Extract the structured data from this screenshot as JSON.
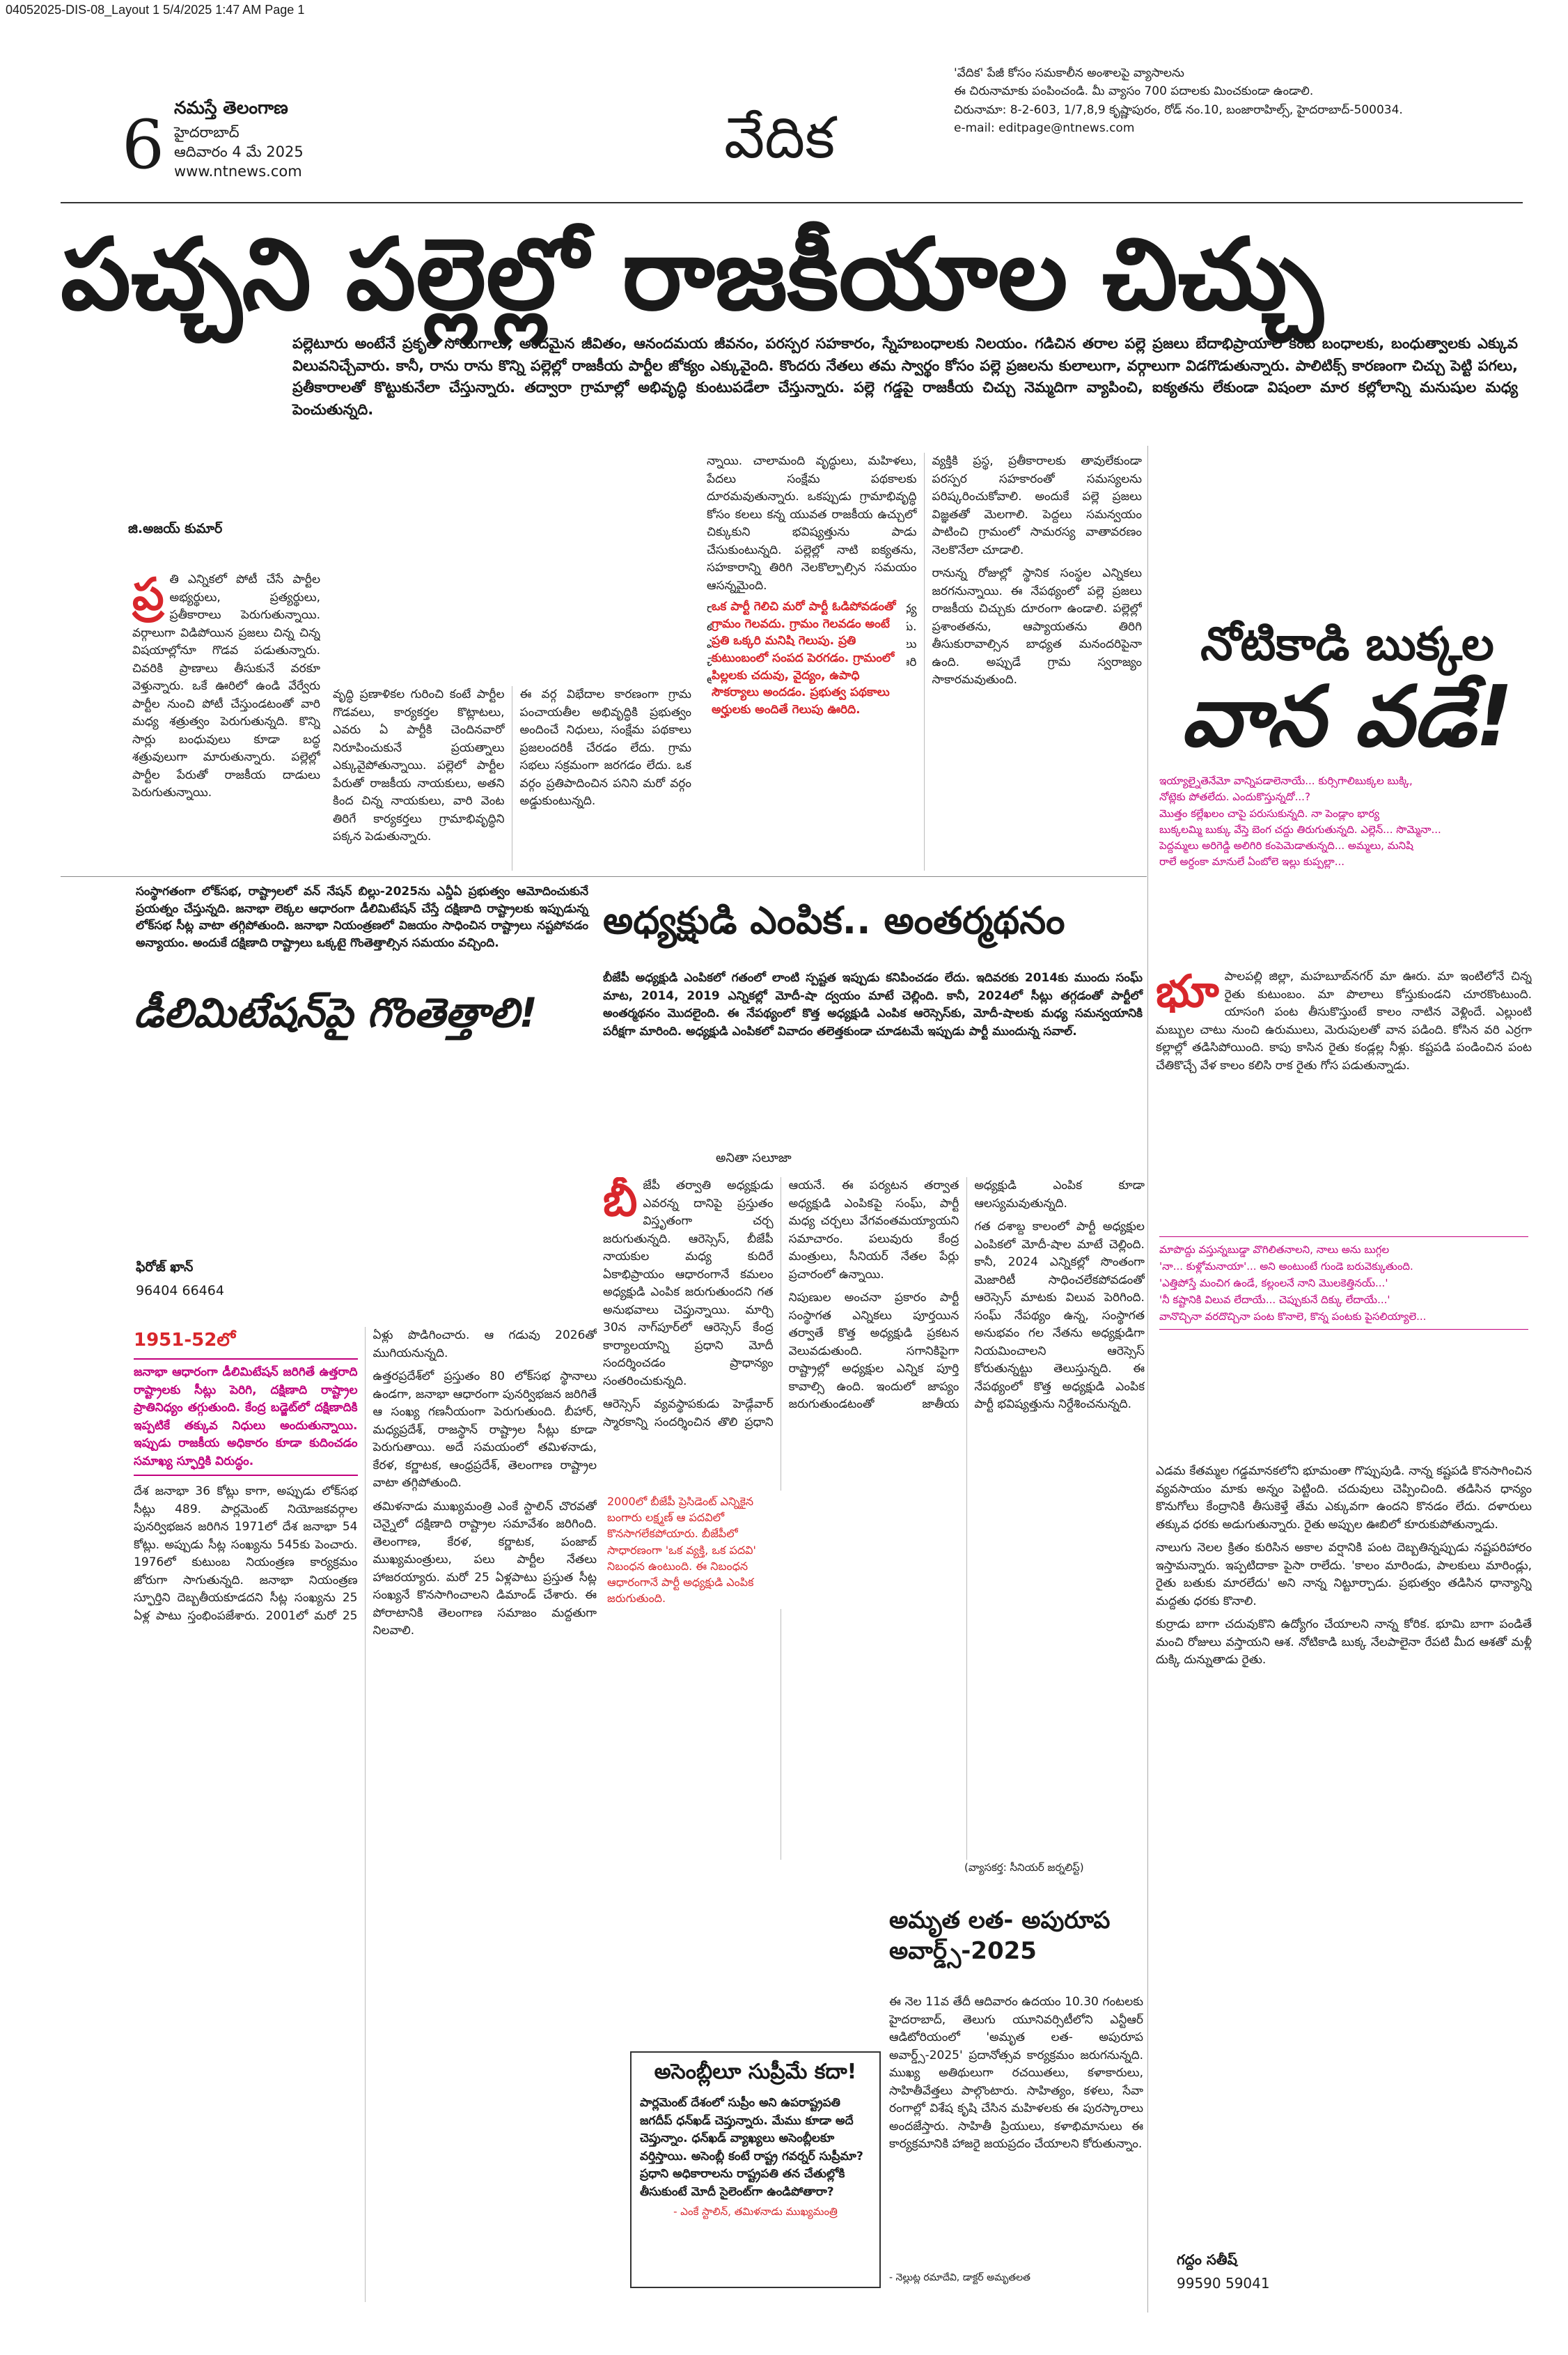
{
  "slug": "04052025-DIS-08_Layout 1  5/4/2025  1:47 AM  Page 1",
  "masthead": {
    "page_number": "6",
    "paper": "నమస్తే తెలంగాణ",
    "city": "హైదరాబాద్",
    "date": "ఆదివారం 4 మే 2025",
    "website": "www.ntnews.com",
    "section": "వేదిక",
    "info": [
      "'వేదిక' పేజీ కోసం సమకాలీన అంశాలపై వ్యాసాలను",
      "ఈ చిరునామాకు పంపించండి. మీ వ్యాసం 700 పదాలకు మించకుండా ఉండాలి.",
      "చిరునామా: 8-2-603, 1/7,8,9 కృష్ణాపురం, రోడ్ నం.10, బంజారాహిల్స్, హైదరాబాద్-500034.",
      "e-mail: editpage@ntnews.com"
    ]
  },
  "lead": {
    "headline": "పచ్చని పల్లెల్లో రాజకీయాల చిచ్చు",
    "deck": "పల్లెటూరు అంటేనే ప్రకృతి సోయగాలు, అందమైన జీవితం, ఆనందమయ జీవనం, పరస్పర సహకారం, స్నేహబంధాలకు నిలయం. గడిచిన తరాల పల్లె ప్రజలు బేదాభిప్రాయాల కంటే బంధాలకు, బంధుత్వాలకు ఎక్కువ విలువనిచ్చేవారు. కానీ, రాను రాను కొన్ని పల్లెల్లో రాజకీయ పార్టీల జోక్యం ఎక్కువైంది. కొందరు నేతలు తమ స్వార్థం కోసం పల్లె ప్రజలను కులాలుగా, వర్గాలుగా విడగొడుతున్నారు. పాలిటిక్స్ కారణంగా చిచ్చు పెట్టి పగలు, ప్రతీకారాలతో కొట్టుకునేలా చేస్తున్నారు. తద్వారా గ్రామాల్లో అభివృద్ధి కుంటుపడేలా చేస్తున్నారు. పల్లె గడ్డపై రాజకీయ చిచ్చు నెమ్మదిగా వ్యాపించి, ఐక్యతను లేకుండా విషంలా మార కల్లోలాన్ని మనుషుల మధ్య పెంచుతున్నది.",
    "byline": "జి.అజయ్ కుమార్",
    "dropcap": "ప్ర",
    "body_a": [
      "తి ఎన్నికలో పోటీ చేసే పార్టీల అభ్యర్థులు, ప్రత్యర్థులు, ప్రతీకారాలు పెరుగుతున్నాయి. వర్గాలుగా విడిపోయిన ప్రజలు చిన్న చిన్న విషయాల్లోనూ గొడవ పడుతున్నారు. చివరికి ప్రాణాలు తీసుకునే వరకూ వెళ్తున్నారు. ఒకే ఊరిలో ఉండి వేర్వేరు పార్టీల నుంచి పోటీ చేస్తుండటంతో వారి మధ్య శత్రుత్వం పెరుగుతున్నది. కొన్ని సార్లు బంధువులు కూడా బద్ధ శత్రువులుగా మారుతున్నారు. పల్లెల్లో పార్టీల పేరుతో రాజకీయ దాడులు పెరుగుతున్నాయి."
    ],
    "body_b": [
      "వృద్ధి ప్రణాళికల గురించి కంటే పార్టీల గొడవలు, కార్యకర్తల కొట్లాటలు, ఎవరు ఏ పార్టీకి చెందినవారో నిరూపించుకునే ప్రయత్నాలు ఎక్కువైపోతున్నాయి. పల్లెలో పార్టీల పేరుతో రాజకీయ నాయకులు, అతని కింద చిన్న నాయకులు, వారి వెంట తిరిగే కార్యకర్తలు గ్రామాభివృద్ధిని పక్కన పెడుతున్నారు.",
      "ఈ వర్గ విభేదాల కారణంగా గ్రామ పంచాయతీల అభివృద్ధికి ప్రభుత్వం అందించే నిధులు, సంక్షేమ పథకాలు ప్రజలందరికీ చేరడం లేదు. గ్రామ సభలు సక్రమంగా జరగడం లేదు. ఒక వర్గం ప్రతిపాదించిన పనిని మరో వర్గం అడ్డుకుంటున్నది."
    ],
    "pullquote": "ఒక పార్టీ గెలిచి మరో పార్టీ ఓడిపోవడంతో గ్రామం గెలవదు. గ్రామం గెలవడం అంటే ప్రతి ఒక్కరి మనిషి గెలుపు. ప్రతి కుటుంబంలో సంపద పెరగడం. గ్రామంలో పిల్లలకు చదువు, వైద్యం, ఉపాధి సౌకర్యాలు అందడం. ప్రభుత్వ పథకాలు అర్హులకు అందితే గెలుపు ఊరిది.",
    "body_c": [
      "న్నాయి. చాలామంది వృద్ధులు, మహిళలు, పేదలు సంక్షేమ పథకాలకు దూరమవుతున్నారు. ఒకప్పుడు గ్రామాభివృద్ధి కోసం కలలు కన్న యువత రాజకీయ ఉచ్చులో చిక్కుకుని భవిష్యత్తును పాడు చేసుకుంటున్నది. పల్లెల్లో నాటి ఐక్యతను, సహకారాన్ని తిరిగి నెలకొల్పాల్సిన సమయం ఆసన్నమైంది.",
      "రాజకీయాలు దేశానికి, రాష్ట్రానికి మధ్య ఉండాలి గానీ పల్లెల నడుమ ఉండకూడదు. ఎన్నికల సమయంలో మాత్రమే రాజకీయాలు చేయాలి. ఆ తర్వాత అందరూ కలిసి ఊరి అభివృద్ధికి కృషి చేయాలి.",
      "వ్యక్తికి ప్రస్థ, ప్రతీకారాలకు తావులేకుండా పరస్పర సహకారంతో సమస్యలను పరిష్కరించుకోవాలి. అందుకే పల్లె ప్రజలు విజ్ఞతతో మెలగాలి. పెద్దలు సమన్వయం పాటించి గ్రామంలో సామరస్య వాతావరణం నెలకొనేలా చూడాలి.",
      "రానున్న రోజుల్లో స్థానిక సంస్థల ఎన్నికలు జరగనున్నాయి. ఈ నేపథ్యంలో పల్లె ప్రజలు రాజకీయ చిచ్చుకు దూరంగా ఉండాలి. పల్లెల్లో ప్రశాంతతను, ఆప్యాయతను తిరిగి తీసుకురావాల్సిన బాధ్యత మనందరిపైనా ఉంది. అప్పుడే గ్రామ స్వరాజ్యం సాకారమవుతుంది."
    ]
  },
  "delimitation": {
    "intro": "సంస్థాగతంగా లోక్‌సభ, రాష్ట్రాలలో వన్ నేషన్ బిల్లు-2025ను ఎన్డీఏ ప్రభుత్వం ఆమోదించుకునే ప్రయత్నం చేస్తున్నది. జనాభా లెక్కల ఆధారంగా డీలిమిటేషన్ చేస్తే దక్షిణాది రాష్ట్రాలకు ఇప్పుడున్న లోక్‌సభ సీట్ల వాటా తగ్గిపోతుంది. జనాభా నియంత్రణలో విజయం సాధించిన రాష్ట్రాలు నష్టపోవడం అన్యాయం. అందుకే దక్షిణాది రాష్ట్రాలు ఒక్కటై గొంతెత్తాల్సిన సమయం వచ్చింది.",
    "headline": "డీలిమిటేషన్‌పై గొంతెత్తాలి!",
    "byline": "ఫిరోజ్ ఖాన్",
    "phone": "96404 66464",
    "lead_in": "1951-52లో",
    "body": [
      "దేశ జనాభా 36 కోట్లు కాగా, అప్పుడు లోక్‌సభ సీట్లు 489. పార్లమెంట్ నియోజకవర్గాల పునర్విభజన జరిగిన 1971లో దేశ జనాభా 54 కోట్లు. అప్పుడు సీట్ల సంఖ్యను 545కు పెంచారు. 1976లో కుటుంబ నియంత్రణ కార్యక్రమం జోరుగా సాగుతున్నది. జనాభా నియంత్రణ స్ఫూర్తిని దెబ్బతీయకూడదని సీట్ల సంఖ్యను 25 ఏళ్ల పాటు స్తంభింపజేశారు. 2001లో మరో 25 ఏళ్లు పొడిగించారు. ఆ గడువు 2026తో ముగియనున్నది.",
      "ఉత్తరప్రదేశ్‌లో ప్రస్తుతం 80 లోక్‌సభ స్థానాలు ఉండగా, జనాభా ఆధారంగా పునర్విభజన జరిగితే ఆ సంఖ్య గణనీయంగా పెరుగుతుంది. బీహార్, మధ్యప్రదేశ్, రాజస్థాన్ రాష్ట్రాల సీట్లు కూడా పెరుగుతాయి. అదే సమయంలో తమిళనాడు, కేరళ, కర్ణాటక, ఆంధ్రప్రదేశ్, తెలంగాణ రాష్ట్రాల వాటా తగ్గిపోతుంది.",
      "తమిళనాడు ముఖ్యమంత్రి ఎంకే స్టాలిన్ చొరవతో చెన్నైలో దక్షిణాది రాష్ట్రాల సమావేశం జరిగింది. తెలంగాణ, కేరళ, కర్ణాటక, పంజాబ్ ముఖ్యమంత్రులు, పలు పార్టీల నేతలు హాజరయ్యారు. మరో 25 ఏళ్లపాటు ప్రస్తుత సీట్ల సంఖ్యనే కొనసాగించాలని డిమాండ్ చేశారు. ఈ పోరాటానికి తెలంగాణ సమాజం మద్దతుగా నిలవాలి."
    ],
    "box": "జనాభా ఆధారంగా డీలిమిటేషన్ జరిగితే ఉత్తరాది రాష్ట్రాలకు సీట్లు పెరిగి, దక్షిణాది రాష్ట్రాల ప్రాతినిధ్యం తగ్గుతుంది. కేంద్ర బడ్జెట్‌లో దక్షిణాదికి ఇప్పటికే తక్కువ నిధులు అందుతున్నాయి. ఇప్పుడు రాజకీయ అధికారం కూడా కుదించడం సమాఖ్య స్ఫూర్తికి విరుద్ధం."
  },
  "president": {
    "headline": "అధ్యక్షుడి ఎంపిక.. అంతర్మథనం",
    "intro": "బీజేపీ అధ్యక్షుడి ఎంపికలో గతంలో లాంటి స్పష్టత ఇప్పుడు కనిపించడం లేదు. ఇదివరకు 2014కు ముందు సంఘ్ మాట, 2014, 2019 ఎన్నికల్లో మోదీ-షా ద్వయం మాటే చెల్లింది. కానీ, 2024లో సీట్లు తగ్గడంతో పార్టీలో అంతర్మథనం మొదలైంది. ఈ నేపథ్యంలో కొత్త అధ్యక్షుడి ఎంపిక ఆరెస్సెస్‌కు, మోదీ-షాలకు మధ్య సమన్వయానికి పరీక్షగా మారింది. అధ్యక్షుడి ఎంపికలో వివాదం తలెత్తకుండా చూడటమే ఇప్పుడు పార్టీ ముందున్న సవాల్.",
    "byline": "అనితా సలూజా",
    "dropcap": "బీ",
    "body": [
      "జేపీ తర్వాతి అధ్యక్షుడు ఎవరన్న దానిపై ప్రస్తుతం విస్తృతంగా చర్చ జరుగుతున్నది. ఆరెస్సెస్, బీజేపీ నాయకుల మధ్య కుదిరే ఏకాభిప్రాయం ఆధారంగానే కమలం అధ్యక్షుడి ఎంపిక జరుగుతుందని గత అనుభవాలు చెప్తున్నాయి. మార్చి 30న నాగ్‌పూర్‌లో ఆరెస్సెస్ కేంద్ర కార్యాలయాన్ని ప్రధాని మోదీ సందర్శించడం ప్రాధాన్యం సంతరించుకున్నది.",
      "ఆరెస్సెస్ వ్యవస్థాపకుడు హెడ్గేవార్ స్మారకాన్ని సందర్శించిన తొలి ప్రధాని ఆయనే. ఈ పర్యటన తర్వాత అధ్యక్షుడి ఎంపికపై సంఘ్, పార్టీ మధ్య చర్చలు వేగవంతమయ్యాయని సమాచారం. పలువురు కేంద్ర మంత్రులు, సీనియర్ నేతల పేర్లు ప్రచారంలో ఉన్నాయి.",
      "నిపుణుల అంచనా ప్రకారం పార్టీ సంస్థాగత ఎన్నికలు పూర్తయిన తర్వాతే కొత్త అధ్యక్షుడి ప్రకటన వెలువడుతుంది. సగానికిపైగా రాష్ట్రాల్లో అధ్యక్షుల ఎన్నిక పూర్తి కావాల్సి ఉంది. ఇందులో జాప్యం జరుగుతుండటంతో జాతీయ అధ్యక్షుడి ఎంపిక కూడా ఆలస్యమవుతున్నది.",
      "గత దశాబ్ద కాలంలో పార్టీ అధ్యక్షుల ఎంపికలో మోదీ-షాల మాటే చెల్లింది. కానీ, 2024 ఎన్నికల్లో సొంతంగా మెజారిటీ సాధించలేకపోవడంతో ఆరెస్సెస్ మాటకు విలువ పెరిగింది. సంఘ్ నేపథ్యం ఉన్న, సంస్థాగత అనుభవం గల నేతను అధ్యక్షుడిగా నియమించాలని ఆరెస్సెస్ కోరుతున్నట్టు తెలుస్తున్నది. ఈ నేపథ్యంలో కొత్త అధ్యక్షుడి ఎంపిక పార్టీ భవిష్యత్తును నిర్దేశించనున్నది."
    ],
    "pullquote": "2000లో బీజేపీ ప్రెసిడెంట్ ఎన్నికైన బంగారు లక్ష్మణ్ ఆ పదవిలో కొనసాగలేకపోయారు. బీజేపీలో సాధారణంగా 'ఒక వ్యక్తి, ఒక పదవి' నిబంధన ఉంటుంది. ఈ నిబంధన ఆధారంగానే పార్టీ అధ్యక్షుడి ఎంపిక జరుగుతుంది.",
    "footnote": "(వ్యాసకర్త: సీనియర్ జర్నలిస్ట్)"
  },
  "column": {
    "headline_1": "నోటికాడి బుక్కల",
    "headline_2": "వాన వడే!",
    "poem_1": [
      "ఇయ్యాల్నైతెనేమో వాన్నిపడాలెనాయే... కుర్సిగాలిబుక్కల బుక్కి,",
      "నోట్లెకు పోతలేదు. ఎందుకొస్తున్నదో...?",
      "మొత్తం కల్లేఖలం చాపై పరుసుకున్నది. నా పెండ్లాం భార్య",
      "బుక్కలమ్మి బుక్కు వేస్తె బెంగ చద్దు తిరుగుతున్నది. ఎల్లెన్... సొమ్మెనా...",
      "పెద్దమ్మలు అరిగెడ్డి అలిగిరి కంపెమెడాతున్నది... అమ్మలు, మనిషి",
      "రాలే అర్దంకా మానులే ఏంబోలె ఇల్లు కుప్పల్లా..."
    ],
    "dropcap": "భూ",
    "body_1": [
      "పాలపల్లి జిల్లా, మహబూబ్‌నగర్ మా ఊరు. మా ఇంటిలోనే చిన్న రైతు కుటుంబం. మా పొలాలు కోస్తుకుండని చూరకొంటుంది. యాసంగి పంట తీసుకొస్తుంటే కాలం నాటిన వెళ్లిందే. ఎల్లుంటి మబ్బుల చాటు నుంచి ఉరుములు, మెరుపులతో వాన పడింది. కోసిన వరి ఎర్రగా కల్లాల్లో తడిసిపోయింది. కాపు కాసిన రైతు కండ్లల్ల నీళ్లు. కష్టపడి పండించిన పంట చేతికొచ్చే వేళ కాలం కలిసి రాక రైతు గోస పడుతున్నాడు."
    ],
    "poem_2": [
      "మాపొద్దు వస్తున్నబుడ్డా వొగిలితనాలని, నాలు అను బుగ్గల",
      "'నా... కుళ్లోమనాయా'... అని అంటుంటే గుండె బరువెక్కుతుంది.",
      "'ఎత్తిపోస్తే మంచిగ ఉండే, కల్లంలనే నాని మొలకెత్తినయ్...'",
      "'నీ కష్టానికి విలువ లేదాయే... చెప్పుకునే దిక్కు లేదాయే...'",
      "వానొచ్చినా వరదొచ్చినా పంట కొనాలె, కొన్న పంటకు పైసలియ్యాలె..."
    ],
    "body_2": [
      "ఎడమ కేతమ్మల గడ్డమానకలోని భూమంతా గొప్పుపుడి. నాన్న కష్టపడి కొనసాగించిన వ్యవసాయం మాకు అన్నం పెట్టింది. చదువులు చెప్పించింది. తడిసిన ధాన్యం కొనుగోలు కేంద్రానికి తీసుకెళ్తే తేమ ఎక్కువగా ఉందని కొనడం లేదు. దళారులు తక్కువ ధరకు అడుగుతున్నారు. రైతు అప్పుల ఊబిలో కూరుకుపోతున్నాడు.",
      "నాలుగు నెలల క్రితం కురిసిన అకాల వర్షానికి పంట దెబ్బతిన్నప్పుడు నష్టపరిహారం ఇస్తామన్నారు. ఇప్పటిదాకా పైసా రాలేదు. 'కాలం మారిండు, పాలకులు మారిండ్లు, రైతు బతుకు మారలేదు' అని నాన్న నిట్టూర్చాడు. ప్రభుత్వం తడిసిన ధాన్యాన్ని మద్దతు ధరకు కొనాలి.",
      "కుర్రాడు బాగా చదువుకొని ఉద్యోగం చేయాలని నాన్న కోరిక. భూమి బాగా పండితే మంచి రోజులు వస్తాయని ఆశ. నోటికాడి బుక్క నేలపాలైనా రేపటి మీద ఆశతో మళ్లీ దుక్కి దున్నుతాడు రైతు."
    ],
    "byline": "గద్దం సతీష్",
    "phone": "99590 59041"
  },
  "award": {
    "headline": "అమృత లత- అపురూప అవార్డ్స్-2025",
    "body": "ఈ నెల 11వ తేదీ ఆదివారం ఉదయం 10.30 గంటలకు హైదరాబాద్, తెలుగు యూనివర్సిటీలోని ఎన్టీఆర్ ఆడిటోరియంలో 'అమృత లత- అపురూప అవార్డ్స్-2025' ప్రదానోత్సవ కార్యక్రమం జరుగనున్నది. ముఖ్య అతిథులుగా రచయితలు, కళాకారులు, సాహితీవేత్తలు పాల్గొంటారు. సాహిత్యం, కళలు, సేవా రంగాల్లో విశేష కృషి చేసిన మహిళలకు ఈ పురస్కారాలు అందజేస్తారు. సాహితీ ప్రియులు, కళాభిమానులు ఈ కార్యక్రమానికి హాజరై జయప్రదం చేయాలని కోరుతున్నాం.",
    "signature": "- నెల్లుట్ల రమాదేవి, డాక్టర్ అమృతలత"
  },
  "quote": {
    "headline": "అసెంబ్లీలూ సుప్రీమే కదా!",
    "text": "పార్లమెంట్ దేశంలో సుప్రీం అని ఉపరాష్ట్రపతి జగదీప్ ధన్‌ఖడ్ చెప్తున్నారు. మేము కూడా అదే చెప్తున్నాం. ధన్‌ఖడ్ వ్యాఖ్యలు అసెంబ్లీలకూ వర్తిస్తాయి. అసెంబ్లీ కంటే రాష్ట్ర గవర్నర్ సుప్రీమా? ప్రధాని అధికారాలను రాష్ట్రపతి తన చేతుల్లోకి తీసుకుంటే మోదీ సైలెంట్‌గా ఉండిపోతారా?",
    "attribution": "- ఎంకే స్టాలిన్, తమిళనాడు ముఖ్యమంత్రి"
  }
}
